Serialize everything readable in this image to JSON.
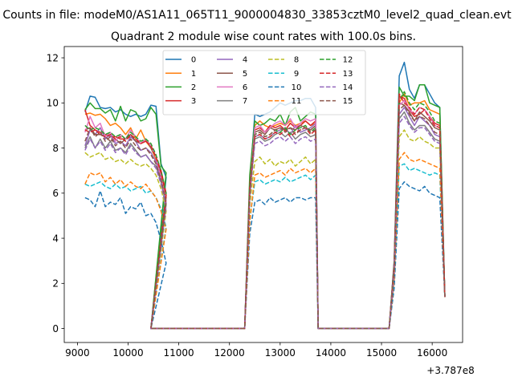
{
  "chart_data": {
    "type": "line",
    "suptitle": "Counts in file: modeM0/AS1A11_065T11_9000004830_33853cztM0_level2_quad_clean.evt",
    "title": "Quadrant 2 module wise count rates with 100.0s bins.",
    "x_offset_label": "+3.787e8",
    "xlim": [
      8740,
      16600
    ],
    "ylim": [
      -0.62,
      12.5
    ],
    "xticks": [
      9000,
      10000,
      11000,
      12000,
      13000,
      14000,
      15000,
      16000
    ],
    "xtick_labels": [
      "9000",
      "10000",
      "11000",
      "12000",
      "13000",
      "14000",
      "15000",
      "16000"
    ],
    "yticks": [
      0,
      2,
      4,
      6,
      8,
      10,
      12
    ],
    "ytick_labels": [
      "0",
      "2",
      "4",
      "6",
      "8",
      "10",
      "12"
    ],
    "grid": false,
    "legend": {
      "placement": "upper-center",
      "columns": 4
    },
    "series": [
      {
        "name": "0",
        "color": "#1f77b4",
        "dashed": false,
        "a": [
          9.6,
          10.3,
          10.25,
          9.8,
          9.75,
          9.8,
          9.6,
          9.7,
          9.5,
          9.4,
          9.5,
          9.4,
          9.5,
          9.9,
          9.85,
          7.3,
          6.7
        ],
        "b": [
          6.5,
          9.5,
          9.4,
          9.5,
          9.6,
          9.8,
          10.0,
          9.9,
          10.0,
          10.1,
          10.1,
          10.2,
          10.2,
          9.8
        ],
        "c": [
          3.0,
          11.2,
          11.8,
          10.6,
          10.2,
          10.8,
          10.8,
          10.4,
          10.0,
          9.8
        ]
      },
      {
        "name": "1",
        "color": "#ff7f0e",
        "dashed": false,
        "a": [
          9.5,
          9.55,
          9.45,
          9.5,
          9.3,
          9.0,
          9.1,
          8.9,
          8.6,
          8.9,
          8.4,
          8.8,
          8.3,
          8.0,
          7.5,
          6.9,
          5.9
        ],
        "b": [
          6.0,
          9.0,
          9.2,
          9.0,
          8.9,
          9.0,
          9.1,
          9.0,
          9.2,
          9.0,
          9.1,
          9.2,
          9.0,
          9.1
        ],
        "c": [
          2.8,
          10.0,
          10.4,
          9.9,
          10.0,
          10.0,
          10.1,
          9.7,
          9.6,
          9.5
        ]
      },
      {
        "name": "2",
        "color": "#2ca02c",
        "dashed": false,
        "a": [
          9.7,
          10.0,
          9.75,
          9.75,
          9.55,
          9.7,
          9.2,
          9.85,
          9.2,
          9.7,
          9.6,
          9.2,
          9.3,
          9.8,
          9.5,
          7.2,
          6.9
        ],
        "b": [
          6.8,
          9.2,
          9.0,
          9.1,
          9.3,
          9.2,
          9.5,
          9.0,
          9.6,
          9.8,
          9.2,
          9.4,
          9.6,
          9.5
        ],
        "c": [
          2.9,
          10.7,
          10.3,
          10.3,
          10.1,
          10.8,
          10.8,
          10.0,
          9.9,
          9.8
        ]
      },
      {
        "name": "3",
        "color": "#d62728",
        "dashed": false,
        "a": [
          9.7,
          9.0,
          8.8,
          8.7,
          8.6,
          8.5,
          8.5,
          8.4,
          8.4,
          8.5,
          8.3,
          8.2,
          8.3,
          8.1,
          7.6,
          7.0,
          6.0
        ],
        "b": [
          6.3,
          8.8,
          8.9,
          8.7,
          9.0,
          8.9,
          9.0,
          8.8,
          9.1,
          8.9,
          9.0,
          9.2,
          9.0,
          9.2
        ],
        "c": [
          2.9,
          10.3,
          10.2,
          9.7,
          9.4,
          9.5,
          9.7,
          9.4,
          9.1,
          9.0
        ]
      },
      {
        "name": "4",
        "color": "#9467bd",
        "dashed": false,
        "a": [
          8.1,
          8.8,
          8.6,
          8.9,
          8.4,
          8.6,
          8.2,
          8.3,
          8.1,
          8.5,
          8.3,
          7.9,
          8.0,
          7.8,
          7.4,
          6.6,
          5.6
        ],
        "b": [
          6.0,
          8.5,
          8.6,
          8.4,
          8.5,
          8.7,
          8.8,
          8.9,
          8.6,
          9.0,
          8.7,
          8.8,
          8.9,
          9.1
        ],
        "c": [
          2.6,
          9.5,
          9.8,
          9.4,
          9.0,
          9.4,
          9.2,
          9.0,
          8.6,
          8.5
        ]
      },
      {
        "name": "5",
        "color": "#8c564b",
        "dashed": false,
        "a": [
          8.8,
          8.9,
          8.6,
          8.6,
          8.5,
          8.3,
          8.4,
          8.2,
          8.4,
          8.6,
          8.3,
          8.2,
          8.4,
          8.0,
          7.6,
          6.8,
          5.8
        ],
        "b": [
          6.1,
          8.7,
          8.8,
          8.6,
          8.9,
          8.8,
          8.9,
          8.8,
          8.9,
          8.8,
          9.0,
          8.9,
          8.8,
          9.0
        ],
        "c": [
          2.7,
          10.0,
          9.9,
          9.6,
          9.2,
          9.6,
          9.4,
          9.2,
          8.9,
          8.8
        ]
      },
      {
        "name": "6",
        "color": "#e377c2",
        "dashed": false,
        "a": [
          8.7,
          9.4,
          8.9,
          9.1,
          8.5,
          8.7,
          8.3,
          8.6,
          8.4,
          8.8,
          8.5,
          8.2,
          8.4,
          8.1,
          7.6,
          6.7,
          5.7
        ],
        "b": [
          6.1,
          8.9,
          9.0,
          8.7,
          8.9,
          9.1,
          9.2,
          9.0,
          9.3,
          8.9,
          9.1,
          9.3,
          9.2,
          9.3
        ],
        "c": [
          2.7,
          9.9,
          10.1,
          9.7,
          9.5,
          9.8,
          9.7,
          9.4,
          9.0,
          8.9
        ]
      },
      {
        "name": "7",
        "color": "#7f7f7f",
        "dashed": false,
        "a": [
          8.0,
          8.5,
          8.0,
          8.4,
          8.0,
          8.3,
          7.9,
          8.0,
          7.8,
          8.2,
          7.9,
          7.6,
          7.7,
          7.4,
          7.2,
          6.5,
          5.5
        ],
        "b": [
          5.9,
          8.4,
          8.5,
          8.3,
          8.4,
          8.6,
          8.7,
          8.5,
          8.7,
          8.4,
          8.6,
          8.7,
          8.5,
          8.6
        ],
        "c": [
          2.6,
          9.3,
          9.6,
          9.1,
          8.8,
          9.0,
          9.0,
          8.7,
          8.4,
          8.3
        ]
      },
      {
        "name": "8",
        "color": "#bcbd22",
        "dashed": true,
        "a": [
          7.8,
          7.6,
          7.7,
          7.8,
          7.5,
          7.6,
          7.4,
          7.5,
          7.3,
          7.5,
          7.3,
          7.2,
          7.3,
          7.1,
          6.8,
          6.2,
          5.2
        ],
        "b": [
          5.5,
          7.4,
          7.6,
          7.3,
          7.5,
          7.2,
          7.4,
          7.3,
          7.5,
          7.2,
          7.4,
          7.6,
          7.3,
          7.5
        ],
        "c": [
          2.4,
          8.5,
          8.8,
          8.4,
          8.3,
          8.5,
          8.3,
          8.2,
          8.0,
          8.0
        ]
      },
      {
        "name": "9",
        "color": "#17becf",
        "dashed": true,
        "a": [
          6.4,
          6.3,
          6.4,
          6.5,
          6.3,
          6.2,
          6.4,
          6.2,
          6.3,
          6.1,
          6.2,
          6.3,
          6.0,
          6.1,
          5.8,
          5.3,
          4.5
        ],
        "b": [
          4.8,
          6.5,
          6.6,
          6.4,
          6.5,
          6.6,
          6.5,
          6.7,
          6.5,
          6.6,
          6.7,
          6.8,
          6.6,
          6.8
        ],
        "c": [
          2.1,
          7.2,
          7.3,
          7.0,
          7.1,
          7.0,
          6.9,
          6.8,
          6.9,
          6.8
        ]
      },
      {
        "name": "10",
        "color": "#1f77b4",
        "dashed": true,
        "a": [
          5.8,
          5.7,
          5.4,
          6.1,
          5.4,
          5.6,
          5.5,
          5.8,
          5.1,
          5.4,
          5.3,
          5.6,
          5.0,
          5.1,
          4.7,
          3.9,
          2.9
        ],
        "b": [
          4.2,
          5.6,
          5.7,
          5.5,
          5.8,
          5.6,
          5.7,
          5.8,
          5.6,
          5.8,
          5.8,
          5.7,
          5.8,
          5.8
        ],
        "c": [
          1.8,
          6.2,
          6.5,
          6.3,
          6.2,
          6.1,
          6.3,
          6.0,
          5.9,
          5.8
        ]
      },
      {
        "name": "11",
        "color": "#ff7f0e",
        "dashed": true,
        "a": [
          6.4,
          6.9,
          6.8,
          6.9,
          6.5,
          6.7,
          6.4,
          6.6,
          6.3,
          6.5,
          6.3,
          6.2,
          6.4,
          6.1,
          5.8,
          5.2,
          4.4
        ],
        "b": [
          4.7,
          6.8,
          6.9,
          6.7,
          6.8,
          6.9,
          7.0,
          6.8,
          7.1,
          6.9,
          7.0,
          7.1,
          6.9,
          7.1
        ],
        "c": [
          2.2,
          7.5,
          7.8,
          7.5,
          7.4,
          7.5,
          7.4,
          7.3,
          7.2,
          7.1
        ]
      },
      {
        "name": "12",
        "color": "#2ca02c",
        "dashed": true,
        "a": [
          9.0,
          8.8,
          8.9,
          8.8,
          8.6,
          8.7,
          8.5,
          8.6,
          8.4,
          8.7,
          8.5,
          8.3,
          8.4,
          8.2,
          7.7,
          7.0,
          6.0
        ],
        "b": [
          6.2,
          8.6,
          8.7,
          8.5,
          8.6,
          8.8,
          8.7,
          8.9,
          8.6,
          8.8,
          8.9,
          9.0,
          8.7,
          8.9
        ],
        "c": [
          2.8,
          10.1,
          10.5,
          10.0,
          9.7,
          10.0,
          9.9,
          9.6,
          9.2,
          9.1
        ]
      },
      {
        "name": "13",
        "color": "#d62728",
        "dashed": true,
        "a": [
          8.8,
          8.7,
          8.8,
          8.6,
          8.5,
          8.6,
          8.4,
          8.5,
          8.3,
          8.6,
          8.4,
          8.2,
          8.3,
          8.1,
          7.6,
          6.9,
          5.9
        ],
        "b": [
          6.1,
          8.5,
          8.6,
          8.4,
          8.5,
          8.7,
          8.6,
          8.8,
          8.5,
          8.7,
          8.8,
          8.9,
          8.6,
          8.8
        ],
        "c": [
          2.7,
          10.4,
          10.0,
          9.8,
          9.5,
          9.8,
          9.7,
          9.3,
          9.0,
          8.9
        ]
      },
      {
        "name": "14",
        "color": "#9467bd",
        "dashed": true,
        "a": [
          7.9,
          8.4,
          8.0,
          8.3,
          7.9,
          8.2,
          7.8,
          8.0,
          7.7,
          8.1,
          7.8,
          7.6,
          7.7,
          7.4,
          7.1,
          6.4,
          5.4
        ],
        "b": [
          5.8,
          8.2,
          8.3,
          8.1,
          8.2,
          8.4,
          8.5,
          8.3,
          8.5,
          8.2,
          8.4,
          8.5,
          8.3,
          8.4
        ],
        "c": [
          2.5,
          9.1,
          9.4,
          9.0,
          8.7,
          8.9,
          8.9,
          8.6,
          8.3,
          8.2
        ]
      },
      {
        "name": "15",
        "color": "#8c564b",
        "dashed": true,
        "a": [
          8.3,
          8.9,
          8.5,
          8.7,
          8.3,
          8.5,
          8.1,
          8.3,
          8.0,
          8.4,
          8.1,
          7.9,
          8.0,
          7.7,
          7.3,
          6.6,
          5.6
        ],
        "b": [
          6.0,
          8.6,
          8.7,
          8.5,
          8.6,
          8.8,
          8.9,
          8.7,
          8.9,
          8.6,
          8.8,
          8.9,
          8.7,
          8.8
        ],
        "c": [
          2.6,
          9.7,
          9.9,
          9.5,
          9.2,
          9.4,
          9.3,
          9.0,
          8.7,
          8.6
        ]
      }
    ],
    "segments": {
      "a_start": 9150,
      "step": 100,
      "b_start": 12400,
      "c_start": 15250,
      "zero_ranges": [
        [
          10450,
          12300
        ],
        [
          13750,
          15150
        ]
      ],
      "drop": {
        "x10450": 0,
        "x12300": 0,
        "x13750": 0,
        "x15150": 0,
        "end_x": 16250,
        "end_y": 1.4
      }
    }
  }
}
